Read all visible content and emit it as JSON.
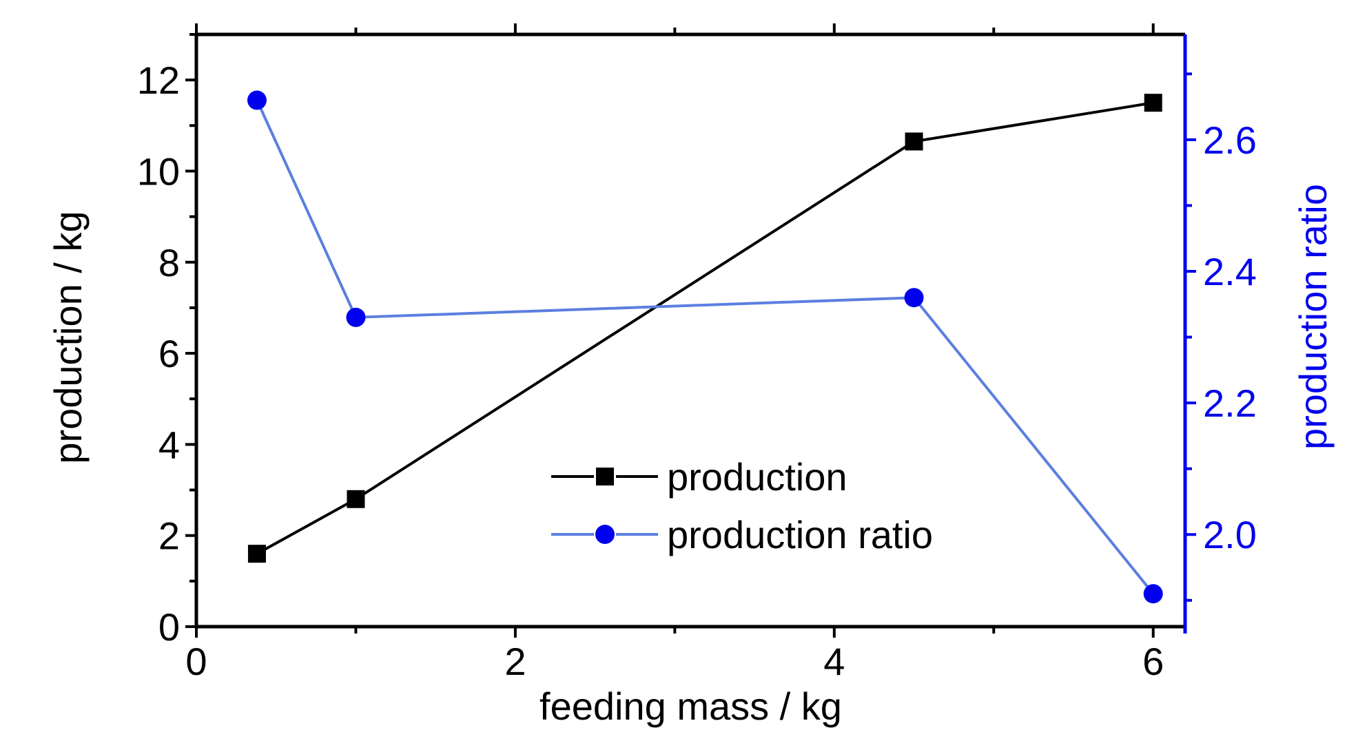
{
  "chart_data": {
    "type": "line",
    "title": "",
    "xlabel": "feeding  mass / kg",
    "ylabel_left": "production / kg",
    "ylabel_right": "production ratio",
    "xlim": [
      0,
      6.2
    ],
    "ylim_left": [
      0,
      13
    ],
    "ylim_right": [
      1.86,
      2.76
    ],
    "x_ticks": [
      0,
      2,
      4,
      6
    ],
    "y_left_ticks": [
      0,
      2,
      4,
      6,
      8,
      10,
      12
    ],
    "y_right_ticks": [
      2.0,
      2.2,
      2.4,
      2.6
    ],
    "x_tick_labels": [
      "0",
      "2",
      "4",
      "6"
    ],
    "y_left_tick_labels": [
      "0",
      "2",
      "4",
      "6",
      "8",
      "10",
      "12"
    ],
    "y_right_tick_labels": [
      "2.0",
      "2.2",
      "2.4",
      "2.6"
    ],
    "series": [
      {
        "name": "production",
        "axis": "left",
        "marker": "square",
        "color": "#000000",
        "x": [
          0.38,
          1.0,
          4.5,
          6.0
        ],
        "y": [
          1.6,
          2.8,
          10.65,
          11.5
        ]
      },
      {
        "name": "production ratio",
        "axis": "right",
        "marker": "circle",
        "line_color": "#5b7fe0",
        "marker_color": "#0000ee",
        "x": [
          0.38,
          1.0,
          4.5,
          6.0
        ],
        "y": [
          2.66,
          2.33,
          2.36,
          1.91
        ]
      }
    ],
    "legend_placement": "center-bottom",
    "grid": false,
    "colors": {
      "axis_left": "#000000",
      "axis_right": "#0000ee",
      "right_label": "#0000ee"
    }
  }
}
